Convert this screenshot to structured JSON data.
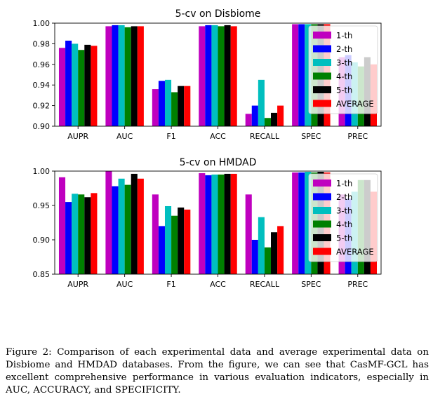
{
  "chart_data": [
    {
      "type": "bar",
      "title": "5-cv on Disbiome",
      "categories": [
        "AUPR",
        "AUC",
        "F1",
        "ACC",
        "RECALL",
        "SPEC",
        "PREC"
      ],
      "ylim": [
        0.9,
        1.0
      ],
      "yticks": [
        "0.90",
        "0.92",
        "0.94",
        "0.96",
        "0.98",
        "1.00"
      ],
      "legend_position": "upper-right",
      "series": [
        {
          "name": "1-th",
          "color": "#bf00bf",
          "values": [
            0.976,
            0.997,
            0.936,
            0.997,
            0.912,
            0.999,
            0.967
          ]
        },
        {
          "name": "2-th",
          "color": "#0000ff",
          "values": [
            0.983,
            0.998,
            0.944,
            0.998,
            0.92,
            0.999,
            0.969
          ]
        },
        {
          "name": "3-th",
          "color": "#00bfbf",
          "values": [
            0.98,
            0.998,
            0.945,
            0.998,
            0.945,
            0.999,
            0.962
          ]
        },
        {
          "name": "4-th",
          "color": "#008000",
          "values": [
            0.974,
            0.996,
            0.933,
            0.997,
            0.908,
            0.999,
            0.958
          ]
        },
        {
          "name": "5-th",
          "color": "#000000",
          "values": [
            0.979,
            0.997,
            0.939,
            0.998,
            0.913,
            0.999,
            0.967
          ]
        },
        {
          "name": "AVERAGE",
          "color": "#ff0000",
          "values": [
            0.978,
            0.997,
            0.939,
            0.997,
            0.92,
            0.999,
            0.96
          ]
        }
      ]
    },
    {
      "type": "bar",
      "title": "5-cv on HMDAD",
      "categories": [
        "AUPR",
        "AUC",
        "F1",
        "ACC",
        "RECALL",
        "SPEC",
        "PREC"
      ],
      "ylim": [
        0.85,
        1.0
      ],
      "yticks": [
        "0.85",
        "0.90",
        "0.95",
        "1.00"
      ],
      "legend_position": "upper-right",
      "series": [
        {
          "name": "1-th",
          "color": "#bf00bf",
          "values": [
            0.991,
            1.0,
            0.966,
            0.997,
            0.966,
            0.998,
            0.966
          ]
        },
        {
          "name": "2-th",
          "color": "#0000ff",
          "values": [
            0.955,
            0.978,
            0.92,
            0.994,
            0.9,
            0.998,
            0.96
          ]
        },
        {
          "name": "3-th",
          "color": "#00bfbf",
          "values": [
            0.967,
            0.989,
            0.949,
            0.995,
            0.933,
            0.999,
            0.97
          ]
        },
        {
          "name": "4-th",
          "color": "#008000",
          "values": [
            0.966,
            0.98,
            0.935,
            0.995,
            0.889,
            0.998,
            0.987
          ]
        },
        {
          "name": "5-th",
          "color": "#000000",
          "values": [
            0.962,
            0.996,
            0.947,
            0.996,
            0.911,
            0.999,
            0.987
          ]
        },
        {
          "name": "AVERAGE",
          "color": "#ff0000",
          "values": [
            0.968,
            0.989,
            0.944,
            0.996,
            0.92,
            0.998,
            0.97
          ]
        }
      ]
    }
  ],
  "caption": "Figure 2: Comparison of each experimental data and average experimental data on Disbiome and HMDAD databases. From the figure, we can see that CasMF-GCL has excellent comprehensive performance in various evaluation indicators, especially in AUC, ACCURACY, and SPECIFICITY."
}
